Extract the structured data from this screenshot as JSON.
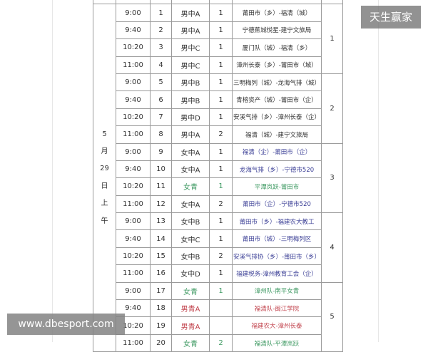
{
  "date_label": [
    "5",
    "月",
    "29",
    "日",
    "上",
    "午"
  ],
  "rows": [
    {
      "time": "9:00",
      "no": "1",
      "group": "男中A",
      "round": "1",
      "match": "莆田市（乡）-福清（城）",
      "color": "normal"
    },
    {
      "time": "9:40",
      "no": "2",
      "group": "男中A",
      "round": "1",
      "match": "宁德蕉城悦星-建宁文旅局",
      "color": "normal"
    },
    {
      "time": "10:20",
      "no": "3",
      "group": "男中C",
      "round": "1",
      "match": "厦门队（城）-福清（乡）",
      "color": "normal"
    },
    {
      "time": "11:00",
      "no": "4",
      "group": "男中C",
      "round": "1",
      "match": "漳州长泰（乡）-莆田市（城）",
      "color": "normal"
    },
    {
      "time": "9:00",
      "no": "5",
      "group": "男中B",
      "round": "1",
      "match": "三明梅列（城）-龙海气排（城）",
      "color": "normal"
    },
    {
      "time": "9:40",
      "no": "6",
      "group": "男中B",
      "round": "1",
      "match": "青榕资产（城）-莆田市（企）",
      "color": "normal"
    },
    {
      "time": "10:20",
      "no": "7",
      "group": "男中D",
      "round": "1",
      "match": "安溪气排（乡）-漳州长泰（企）",
      "color": "normal"
    },
    {
      "time": "11:00",
      "no": "8",
      "group": "男中A",
      "round": "2",
      "match": "福清（城）-建宁文旅局",
      "color": "normal"
    },
    {
      "time": "9:00",
      "no": "9",
      "group": "女中A",
      "round": "1",
      "match": "福清（企）-莆田市（企）",
      "color": "blue"
    },
    {
      "time": "9:40",
      "no": "10",
      "group": "女中A",
      "round": "1",
      "match": "龙海气排（乡）-宁德市520",
      "color": "blue"
    },
    {
      "time": "10:20",
      "no": "11",
      "group": "女青",
      "round": "1",
      "match": "平潭岚跃-莆田市",
      "color": "green"
    },
    {
      "time": "11:00",
      "no": "12",
      "group": "女中A",
      "round": "2",
      "match": "莆田市（企）-宁德市520",
      "color": "blue"
    },
    {
      "time": "9:00",
      "no": "13",
      "group": "女中B",
      "round": "1",
      "match": "莆田市（乡）-福建农大教工",
      "color": "blue"
    },
    {
      "time": "9:40",
      "no": "14",
      "group": "女中C",
      "round": "1",
      "match": "莆田市（城）-三明梅列区",
      "color": "blue"
    },
    {
      "time": "10:20",
      "no": "15",
      "group": "女中B",
      "round": "2",
      "match": "安溪气排协（乡）-莆田市（乡）",
      "color": "blue"
    },
    {
      "time": "11:00",
      "no": "16",
      "group": "女中D",
      "round": "1",
      "match": "福建税务-漳州教育工会（企）",
      "color": "blue"
    },
    {
      "time": "9:00",
      "no": "17",
      "group": "女青",
      "round": "1",
      "match": "漳州队-南平女青",
      "color": "green"
    },
    {
      "time": "9:40",
      "no": "18",
      "group": "男青A",
      "round": "",
      "match": "福清队-闽江学院",
      "color": "red"
    },
    {
      "time": "10:20",
      "no": "19",
      "group": "男青A",
      "round": "",
      "match": "福建农大-漳州长泰",
      "color": "red"
    },
    {
      "time": "11:00",
      "no": "20",
      "group": "女青",
      "round": "2",
      "match": "福清队-平潭岚跃",
      "color": "green"
    }
  ],
  "courts": [
    "1",
    "2",
    "3",
    "4",
    "5"
  ],
  "watermark_top": "天生赢家",
  "watermark_bottom": "www.dbesport.com"
}
